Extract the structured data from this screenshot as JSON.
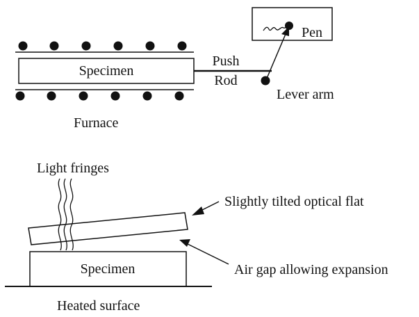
{
  "dilatometer": {
    "specimen_label": "Specimen",
    "push_label": "Push",
    "rod_label": "Rod",
    "pen_label": "Pen",
    "lever_arm_label": "Lever arm",
    "furnace_label": "Furnace"
  },
  "interferometer": {
    "light_fringes_label": "Light fringes",
    "optical_flat_label": "Slightly tilted optical flat",
    "specimen_label": "Specimen",
    "air_gap_label": "Air gap allowing expansion",
    "heated_surface_label": "Heated surface"
  },
  "colors": {
    "ink": "#111111",
    "paper": "#ffffff"
  }
}
